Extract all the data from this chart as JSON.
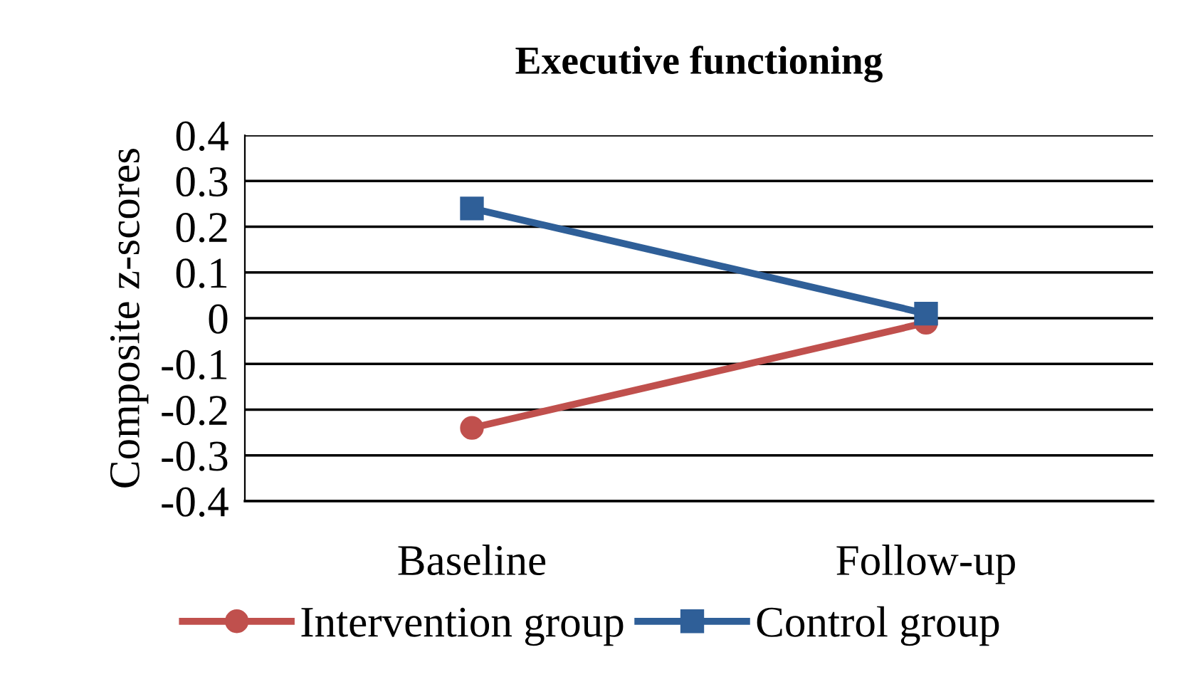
{
  "chart_data": {
    "type": "line",
    "title": "Executive functioning",
    "ylabel": "Composite z-scores",
    "categories": [
      "Baseline",
      "Follow-up"
    ],
    "series": [
      {
        "name": "Intervention group",
        "color": "#c0504d",
        "values": [
          -0.24,
          -0.01
        ],
        "marker": "circle"
      },
      {
        "name": "Control group",
        "color": "#2f5f98",
        "values": [
          0.24,
          0.01
        ],
        "marker": "square"
      }
    ],
    "ylim": [
      -0.4,
      0.4
    ],
    "yticks": [
      -0.4,
      -0.3,
      -0.2,
      -0.1,
      0,
      0.1,
      0.2,
      0.3,
      0.4
    ],
    "grid": "y",
    "legend": "bottom",
    "line_style": "solid"
  }
}
